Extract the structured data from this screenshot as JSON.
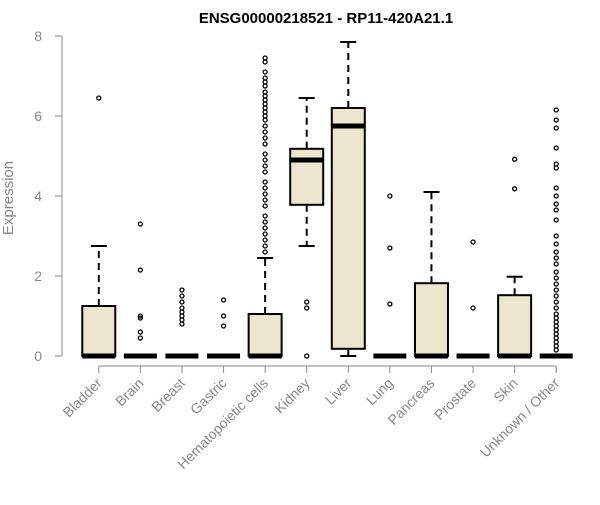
{
  "chart_data": {
    "type": "box",
    "title": "ENSG00000218521 - RP11-420A21.1",
    "xlabel": "",
    "ylabel": "Expression",
    "ylim": [
      0,
      8
    ],
    "yticks": [
      0,
      2,
      4,
      6,
      8
    ],
    "grid": false,
    "legend": "none",
    "box_fill": "#ede6ce",
    "box_stroke": "#000000",
    "categories": [
      "Bladder",
      "Brain",
      "Breast",
      "Gastric",
      "Hematopoietic cells",
      "Kidney",
      "Liver",
      "Lung",
      "Pancreas",
      "Prostate",
      "Skin",
      "Unknown / Other"
    ],
    "boxes": [
      {
        "min": 0,
        "q1": 0,
        "median": 0,
        "q3": 1.25,
        "max": 2.75,
        "outliers": [
          6.45
        ]
      },
      {
        "min": 0,
        "q1": 0,
        "median": 0,
        "q3": 0,
        "max": 0,
        "outliers": [
          3.3,
          2.15,
          1.0,
          0.95,
          0.6,
          0.45
        ]
      },
      {
        "min": 0,
        "q1": 0,
        "median": 0,
        "q3": 0,
        "max": 0,
        "outliers": [
          1.65,
          1.5,
          1.35,
          1.2,
          1.1,
          1.0,
          0.9,
          0.8
        ]
      },
      {
        "min": 0,
        "q1": 0,
        "median": 0,
        "q3": 0,
        "max": 0,
        "outliers": [
          1.4,
          1.0,
          0.75
        ]
      },
      {
        "min": 0,
        "q1": 0,
        "median": 0,
        "q3": 1.05,
        "max": 2.45,
        "outliers": [
          7.45,
          7.35,
          7.1,
          6.95,
          6.85,
          6.75,
          6.6,
          6.5,
          6.4,
          6.3,
          6.2,
          6.1,
          6.0,
          5.9,
          5.75,
          5.6,
          5.45,
          5.3,
          5.05,
          4.9,
          4.75,
          4.6,
          4.35,
          4.2,
          4.05,
          3.9,
          3.75,
          3.5,
          3.35,
          3.2,
          3.05,
          2.9,
          2.75,
          2.6
        ]
      },
      {
        "min": 2.75,
        "q1": 3.78,
        "median": 4.9,
        "q3": 5.18,
        "max": 6.45,
        "outliers": [
          1.35,
          1.2,
          0.0
        ]
      },
      {
        "min": 0.0,
        "q1": 0.18,
        "median": 5.75,
        "q3": 6.2,
        "max": 7.85,
        "outliers": []
      },
      {
        "min": 0,
        "q1": 0,
        "median": 0,
        "q3": 0,
        "max": 0,
        "outliers": [
          4.0,
          2.7,
          1.3
        ]
      },
      {
        "min": 0,
        "q1": 0,
        "median": 0,
        "q3": 1.82,
        "max": 4.1,
        "outliers": []
      },
      {
        "min": 0,
        "q1": 0,
        "median": 0,
        "q3": 0,
        "max": 0,
        "outliers": [
          2.85,
          1.2
        ]
      },
      {
        "min": 0,
        "q1": 0,
        "median": 0,
        "q3": 1.52,
        "max": 1.98,
        "outliers": [
          4.92,
          4.18
        ]
      },
      {
        "min": 0,
        "q1": 0,
        "median": 0,
        "q3": 0,
        "max": 0,
        "outliers": [
          6.15,
          5.9,
          5.7,
          5.2,
          4.8,
          4.7,
          4.2,
          4.0,
          3.8,
          3.65,
          3.4,
          3.0,
          2.8,
          2.6,
          2.45,
          2.3,
          2.1,
          1.95,
          1.8,
          1.65,
          1.5,
          1.35,
          1.2,
          1.05,
          0.95,
          0.85,
          0.75,
          0.65,
          0.55,
          0.45,
          0.35,
          0.25,
          0.15
        ]
      }
    ]
  }
}
